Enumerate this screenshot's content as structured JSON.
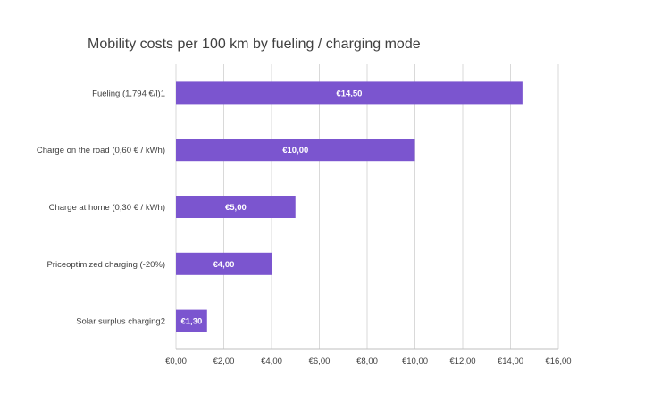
{
  "chart_data": {
    "type": "bar",
    "orientation": "horizontal",
    "title": "Mobility costs per 100 km by fueling / charging mode",
    "categories": [
      "Fueling (1,794 €/l)1",
      "Charge on the road (0,60 € / kWh)",
      "Charge at home (0,30 € / kWh)",
      "Priceoptimized charging (-20%)",
      "Solar surplus charging2"
    ],
    "values": [
      14.5,
      10.0,
      5.0,
      4.0,
      1.3
    ],
    "data_labels": [
      "€14,50",
      "€10,00",
      "€5,00",
      "€4,00",
      "€1,30"
    ],
    "xlim": [
      0,
      16
    ],
    "x_ticks": [
      0,
      2,
      4,
      6,
      8,
      10,
      12,
      14,
      16
    ],
    "x_tick_labels": [
      "€0,00",
      "€2,00",
      "€4,00",
      "€6,00",
      "€8,00",
      "€10,00",
      "€12,00",
      "€14,00",
      "€16,00"
    ],
    "xlabel": "",
    "ylabel": "",
    "grid": "vertical",
    "legend": "none",
    "bar_color": "#7b55cf",
    "grid_color": "#d9d9d9"
  }
}
